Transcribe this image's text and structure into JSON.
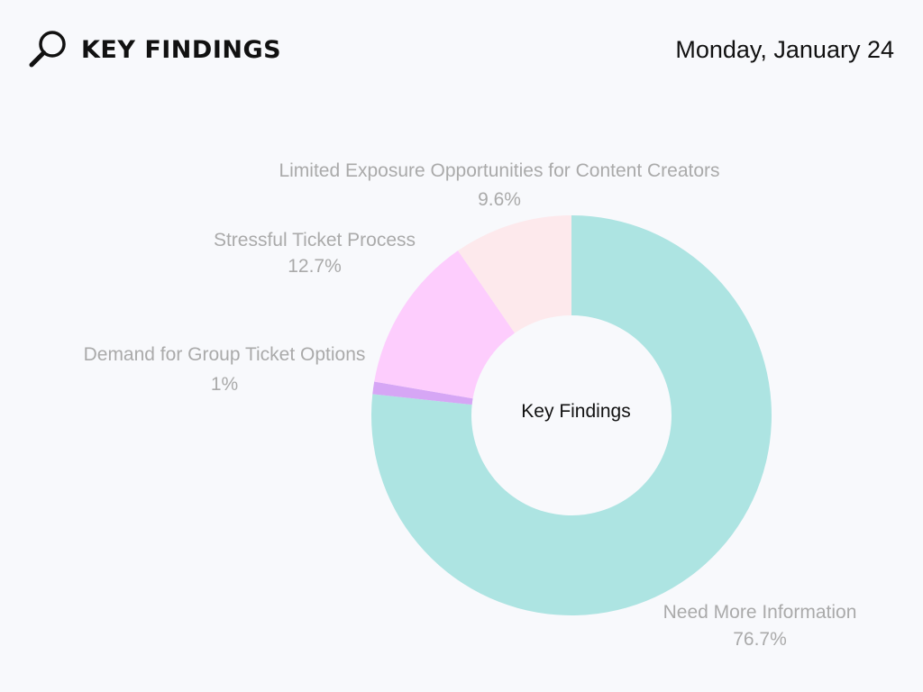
{
  "header": {
    "title": "KEY FINDINGS",
    "date": "Monday, January 24",
    "icon": "search-icon"
  },
  "chart_data": {
    "type": "pie",
    "subtype": "donut",
    "title": "Key Findings",
    "center_label": "Key Findings",
    "slices": [
      {
        "label": "Need More Information",
        "value": 76.7,
        "display": "76.7%",
        "color": "#ade4e2"
      },
      {
        "label": "Demand for Group Ticket Options",
        "value": 1,
        "display": "1%",
        "color": "#d6a6f5"
      },
      {
        "label": "Stressful Ticket Process",
        "value": 12.7,
        "display": "12.7%",
        "color": "#fdcdfd"
      },
      {
        "label": "Limited Exposure Opportunities for Content Creators",
        "value": 9.6,
        "display": "9.6%",
        "color": "#fde9ec"
      }
    ]
  }
}
